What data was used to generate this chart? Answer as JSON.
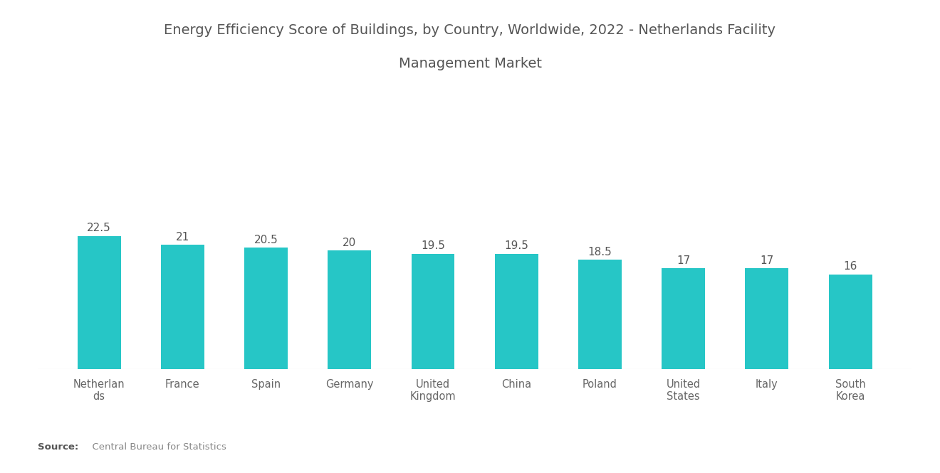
{
  "title_line1": "Energy Efficiency Score of Buildings, by Country, Worldwide, 2022 - Netherlands Facility",
  "title_line2": "Management Market",
  "categories": [
    "Netherlan\nds",
    "France",
    "Spain",
    "Germany",
    "United\nKingdom",
    "China",
    "Poland",
    "United\nStates",
    "Italy",
    "South\nKorea"
  ],
  "values": [
    22.5,
    21,
    20.5,
    20,
    19.5,
    19.5,
    18.5,
    17,
    17,
    16
  ],
  "bar_color": "#26C6C6",
  "background_color": "#ffffff",
  "title_fontsize": 14,
  "label_fontsize": 10.5,
  "value_fontsize": 11,
  "source_bold": "Source:",
  "source_normal": "  Central Bureau for Statistics",
  "ylim": [
    0,
    40
  ],
  "bar_width": 0.52,
  "title_color": "#555555",
  "label_color": "#666666",
  "value_color": "#555555"
}
